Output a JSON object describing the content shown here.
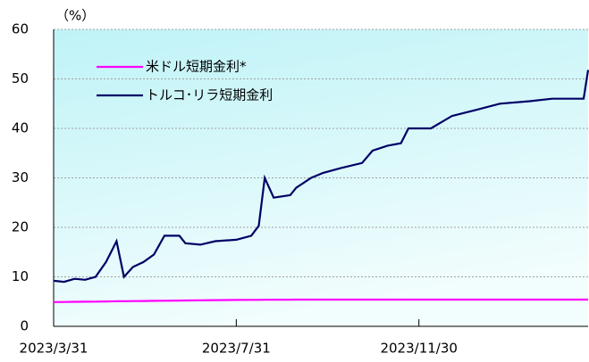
{
  "chart_data": {
    "type": "line",
    "y_label": "（%）",
    "x": [
      "2023/3/31",
      "2023/4/7",
      "2023/4/14",
      "2023/4/21",
      "2023/4/28",
      "2023/5/5",
      "2023/5/12",
      "2023/5/17",
      "2023/5/23",
      "2023/5/30",
      "2023/6/6",
      "2023/6/13",
      "2023/6/23",
      "2023/6/27",
      "2023/7/7",
      "2023/7/17",
      "2023/7/31",
      "2023/8/10",
      "2023/8/15",
      "2023/8/19",
      "2023/8/25",
      "2023/9/5",
      "2023/9/9",
      "2023/9/19",
      "2023/9/27",
      "2023/10/9",
      "2023/10/23",
      "2023/10/30",
      "2023/11/9",
      "2023/11/18",
      "2023/11/23",
      "2023/12/8",
      "2023/12/22",
      "2024/1/8",
      "2024/1/23",
      "2024/2/12",
      "2024/2/27",
      "2024/3/19",
      "2024/3/22"
    ],
    "series": [
      {
        "name": "米ドル短期金利*",
        "color": "#ff00ff",
        "values": [
          4.9,
          4.92,
          4.95,
          4.98,
          5.0,
          5.03,
          5.06,
          5.08,
          5.1,
          5.12,
          5.15,
          5.18,
          5.2,
          5.22,
          5.26,
          5.3,
          5.33,
          5.35,
          5.36,
          5.37,
          5.38,
          5.39,
          5.4,
          5.4,
          5.4,
          5.4,
          5.4,
          5.4,
          5.4,
          5.4,
          5.4,
          5.4,
          5.4,
          5.4,
          5.4,
          5.4,
          5.4,
          5.4,
          5.4
        ]
      },
      {
        "name": "トルコ･リラ短期金利",
        "color": "#000066",
        "values": [
          9.2,
          9.0,
          9.6,
          9.4,
          10.0,
          13.0,
          17.2,
          10.0,
          12.0,
          13.0,
          14.5,
          18.3,
          18.3,
          16.8,
          16.5,
          17.2,
          17.5,
          18.3,
          20.3,
          30.0,
          26.0,
          26.5,
          28.0,
          30.0,
          31.0,
          32.0,
          33.0,
          35.5,
          36.5,
          37.0,
          40.0,
          40.0,
          42.5,
          43.8,
          45.0,
          45.5,
          46.0,
          46.0,
          51.8
        ]
      }
    ],
    "xlim": [
      "2023/3/31",
      "2024/3/22"
    ],
    "xticks": [
      "2023/3/31",
      "2023/7/31",
      "2023/11/30"
    ],
    "ylim": [
      0,
      60
    ],
    "yticks": [
      0,
      10,
      20,
      30,
      40,
      50,
      60
    ],
    "grid": true
  }
}
